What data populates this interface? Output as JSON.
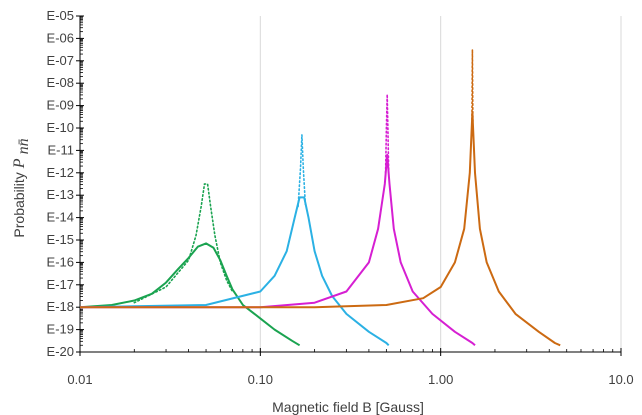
{
  "chart_data": {
    "type": "line",
    "title": "",
    "xlabel": "Magnetic field B [Gauss]",
    "ylabel": {
      "text": "Probability",
      "symbol": "P",
      "subscript": "nn̄"
    },
    "x_scale": "log",
    "y_scale": "log",
    "xlim": [
      0.01,
      10.0
    ],
    "ylim": [
      1e-20,
      1e-05
    ],
    "x_ticks": [
      {
        "value": 0.01,
        "label": "0.01"
      },
      {
        "value": 0.1,
        "label": "0.10"
      },
      {
        "value": 1.0,
        "label": "1.00"
      },
      {
        "value": 10.0,
        "label": "10.0"
      }
    ],
    "y_ticks": [
      {
        "exp": -5,
        "label": "E-05"
      },
      {
        "exp": -6,
        "label": "E-06"
      },
      {
        "exp": -7,
        "label": "E-07"
      },
      {
        "exp": -8,
        "label": "E-08"
      },
      {
        "exp": -9,
        "label": "E-09"
      },
      {
        "exp": -10,
        "label": "E-10"
      },
      {
        "exp": -11,
        "label": "E-11"
      },
      {
        "exp": -12,
        "label": "E-12"
      },
      {
        "exp": -13,
        "label": "E-13"
      },
      {
        "exp": -14,
        "label": "E-14"
      },
      {
        "exp": -15,
        "label": "E-15"
      },
      {
        "exp": -16,
        "label": "E-16"
      },
      {
        "exp": -17,
        "label": "E-17"
      },
      {
        "exp": -18,
        "label": "E-18"
      },
      {
        "exp": -19,
        "label": "E-19"
      },
      {
        "exp": -20,
        "label": "E-20"
      }
    ],
    "grid": {
      "vertical": true,
      "horizontal": false,
      "color": "#d9d9d9"
    },
    "axis_color": "#000000",
    "series": [
      {
        "color": "#1aa350",
        "solid": [
          [
            0.01,
            -18.0
          ],
          [
            0.015,
            -17.9
          ],
          [
            0.02,
            -17.7
          ],
          [
            0.025,
            -17.4
          ],
          [
            0.03,
            -16.9
          ],
          [
            0.035,
            -16.3
          ],
          [
            0.04,
            -15.8
          ],
          [
            0.045,
            -15.3
          ],
          [
            0.05,
            -15.15
          ],
          [
            0.055,
            -15.35
          ],
          [
            0.06,
            -15.9
          ],
          [
            0.065,
            -16.6
          ],
          [
            0.07,
            -17.2
          ],
          [
            0.08,
            -17.9
          ],
          [
            0.1,
            -18.5
          ],
          [
            0.12,
            -19.0
          ],
          [
            0.15,
            -19.5
          ],
          [
            0.165,
            -19.7
          ]
        ],
        "dotted": [
          [
            0.02,
            -17.8
          ],
          [
            0.03,
            -17.1
          ],
          [
            0.04,
            -15.9
          ],
          [
            0.044,
            -14.8
          ],
          [
            0.047,
            -13.5
          ],
          [
            0.049,
            -12.5
          ],
          [
            0.051,
            -12.5
          ],
          [
            0.053,
            -13.5
          ],
          [
            0.056,
            -14.8
          ],
          [
            0.06,
            -16.0
          ],
          [
            0.065,
            -16.8
          ],
          [
            0.07,
            -17.3
          ]
        ]
      },
      {
        "color": "#2bb1e4",
        "solid": [
          [
            0.01,
            -18.0
          ],
          [
            0.05,
            -17.9
          ],
          [
            0.1,
            -17.3
          ],
          [
            0.12,
            -16.6
          ],
          [
            0.14,
            -15.5
          ],
          [
            0.155,
            -14.0
          ],
          [
            0.165,
            -13.1
          ],
          [
            0.175,
            -13.1
          ],
          [
            0.185,
            -14.0
          ],
          [
            0.2,
            -15.5
          ],
          [
            0.22,
            -16.6
          ],
          [
            0.25,
            -17.5
          ],
          [
            0.3,
            -18.3
          ],
          [
            0.4,
            -19.1
          ],
          [
            0.5,
            -19.6
          ],
          [
            0.515,
            -19.7
          ]
        ],
        "dotted": [
          [
            0.162,
            -13.5
          ],
          [
            0.167,
            -11.8
          ],
          [
            0.17,
            -10.3
          ],
          [
            0.173,
            -11.8
          ],
          [
            0.178,
            -13.5
          ]
        ]
      },
      {
        "color": "#d61fd2",
        "solid": [
          [
            0.01,
            -18.0
          ],
          [
            0.1,
            -18.0
          ],
          [
            0.2,
            -17.8
          ],
          [
            0.3,
            -17.3
          ],
          [
            0.4,
            -16.0
          ],
          [
            0.45,
            -14.5
          ],
          [
            0.49,
            -12.5
          ],
          [
            0.505,
            -11.2
          ],
          [
            0.52,
            -12.5
          ],
          [
            0.55,
            -14.5
          ],
          [
            0.6,
            -16.0
          ],
          [
            0.7,
            -17.3
          ],
          [
            0.9,
            -18.3
          ],
          [
            1.2,
            -19.1
          ],
          [
            1.5,
            -19.6
          ],
          [
            1.55,
            -19.7
          ]
        ],
        "dotted": [
          [
            0.495,
            -12.0
          ],
          [
            0.5,
            -10.0
          ],
          [
            0.505,
            -8.5
          ],
          [
            0.51,
            -10.0
          ],
          [
            0.515,
            -12.0
          ]
        ]
      },
      {
        "color": "#cc6a12",
        "solid": [
          [
            0.01,
            -18.0
          ],
          [
            0.2,
            -18.0
          ],
          [
            0.5,
            -17.9
          ],
          [
            0.8,
            -17.6
          ],
          [
            1.0,
            -17.1
          ],
          [
            1.2,
            -16.0
          ],
          [
            1.35,
            -14.5
          ],
          [
            1.45,
            -12.0
          ],
          [
            1.5,
            -9.3
          ],
          [
            1.55,
            -12.0
          ],
          [
            1.65,
            -14.5
          ],
          [
            1.8,
            -16.0
          ],
          [
            2.1,
            -17.3
          ],
          [
            2.6,
            -18.3
          ],
          [
            3.5,
            -19.1
          ],
          [
            4.3,
            -19.6
          ],
          [
            4.6,
            -19.7
          ]
        ],
        "dotted": [
          [
            1.49,
            -9.8
          ],
          [
            1.5,
            -6.5
          ],
          [
            1.51,
            -9.8
          ]
        ]
      }
    ]
  }
}
